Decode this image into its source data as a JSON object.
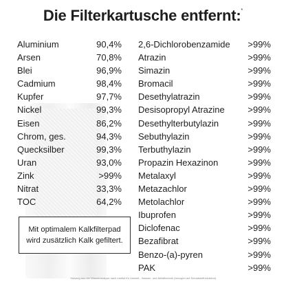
{
  "title": "Die Filterkartusche entfernt:",
  "title_marker": "*",
  "left_items": [
    {
      "name": "Aluminium",
      "value": "90,4%"
    },
    {
      "name": "Arsen",
      "value": "70,8%"
    },
    {
      "name": "Blei",
      "value": "96,9%"
    },
    {
      "name": "Cadmium",
      "value": "98,4%"
    },
    {
      "name": "Kupfer",
      "value": "97,7%"
    },
    {
      "name": "Nickel",
      "value": "99,3%"
    },
    {
      "name": "Eisen",
      "value": "86,2%"
    },
    {
      "name": "Chrom, ges.",
      "value": "94,3%"
    },
    {
      "name": "Quecksilber",
      "value": "99,3%"
    },
    {
      "name": "Uran",
      "value": "93,0%"
    },
    {
      "name": "Zink",
      "value": ">99%"
    },
    {
      "name": "Nitrat",
      "value": "33,3%"
    },
    {
      "name": "TOC",
      "value": "64,2%"
    }
  ],
  "right_items": [
    {
      "name": "2,6-Dichlorobenzamide",
      "value": ">99%"
    },
    {
      "name": "Atrazin",
      "value": ">99%"
    },
    {
      "name": "Simazin",
      "value": ">99%"
    },
    {
      "name": "Bromacil",
      "value": ">99%"
    },
    {
      "name": "Desethylatrazin",
      "value": ">99%"
    },
    {
      "name": "Desisopropyl Atrazine",
      "value": ">99%"
    },
    {
      "name": "Desethylterbutylazin",
      "value": ">99%"
    },
    {
      "name": "Sebuthylazin",
      "value": ">99%"
    },
    {
      "name": "Terbuthylazin",
      "value": ">99%"
    },
    {
      "name": "Propazin Hexazinon",
      "value": ">99%"
    },
    {
      "name": "Metalaxyl",
      "value": ">99%"
    },
    {
      "name": "Metazachlor",
      "value": ">99%"
    },
    {
      "name": "Metolachlor",
      "value": ">99%"
    },
    {
      "name": "Ibuprofen",
      "value": ">99%"
    },
    {
      "name": "Diclofenac",
      "value": ">99%"
    },
    {
      "name": "Bezafibrat",
      "value": ">99%"
    },
    {
      "name": "Benzo-(a)-pyren",
      "value": ">99%"
    },
    {
      "name": "PAK",
      "value": ">99%"
    }
  ],
  "note": {
    "line1": "Mit optimalem Kalkfilterpad",
    "line2": "wird zusätzlich Kalk gefiltert."
  },
  "footnote": "*Auszug aus der Wasseranalyse nach Institut für Umwelt-, Wasser- und Abfalltechnik (bezogen auf Schadstoffreduktion)"
}
